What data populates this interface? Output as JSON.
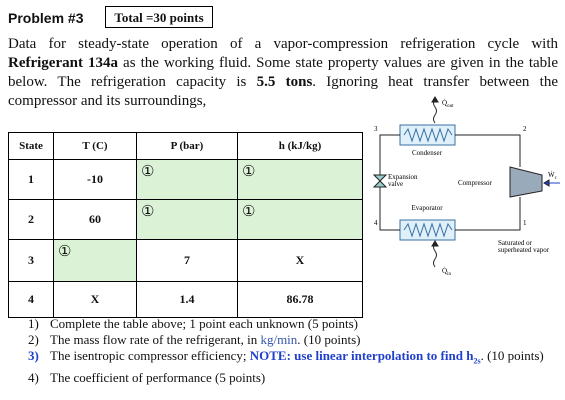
{
  "header": {
    "problem": "Problem #3",
    "total": "Total =30 points"
  },
  "intro": [
    "Data for steady-state operation of a vapor-compression refrigeration cycle with ",
    "Refrigerant 134a",
    " as the working fluid. Some state property values are given in the table below. The refrigeration capacity is ",
    "5.5 tons",
    ". Ignoring heat transfer between the compressor and its surroundings,"
  ],
  "table": {
    "columns": [
      "State",
      "T (C)",
      "P (bar)",
      "h (kJ/kg)"
    ],
    "rows": [
      [
        "1",
        "-10",
        "①",
        "①"
      ],
      [
        "2",
        "60",
        "①",
        "①"
      ],
      [
        "3",
        "①",
        "7",
        "X"
      ],
      [
        "4",
        "X",
        "1.4",
        "86.78"
      ]
    ]
  },
  "diagram": {
    "q_out": {
      "symbol": "Q̇",
      "sub": "out"
    },
    "q_in": {
      "symbol": "Q̇",
      "sub": "in"
    },
    "w_c": {
      "symbol": "Ẇ",
      "sub": "c"
    },
    "condenser": "Condenser",
    "evaporator": "Evaporator",
    "compressor": "Compressor",
    "valve": [
      "Expansion",
      "valve"
    ],
    "vapor": [
      "Saturated or",
      "superheated vapor"
    ],
    "states": [
      "1",
      "2",
      "3",
      "4"
    ]
  },
  "questions": [
    {
      "number": "1)",
      "parts": [
        "Complete the table above; 1 point each unknown (5 points)"
      ]
    },
    {
      "number": "2)",
      "parts": [
        "The mass flow rate of the refrigerant, in ",
        "kg/min",
        ". (10 points)"
      ]
    },
    {
      "number": "3)",
      "parts": [
        "The isentropic compressor efficiency; ",
        "NOTE: use linear interpolation to find h",
        "2s",
        ". (10 points)"
      ]
    },
    {
      "number": "4)",
      "parts": [
        "The coefficient of performance (5 points)"
      ]
    }
  ]
}
